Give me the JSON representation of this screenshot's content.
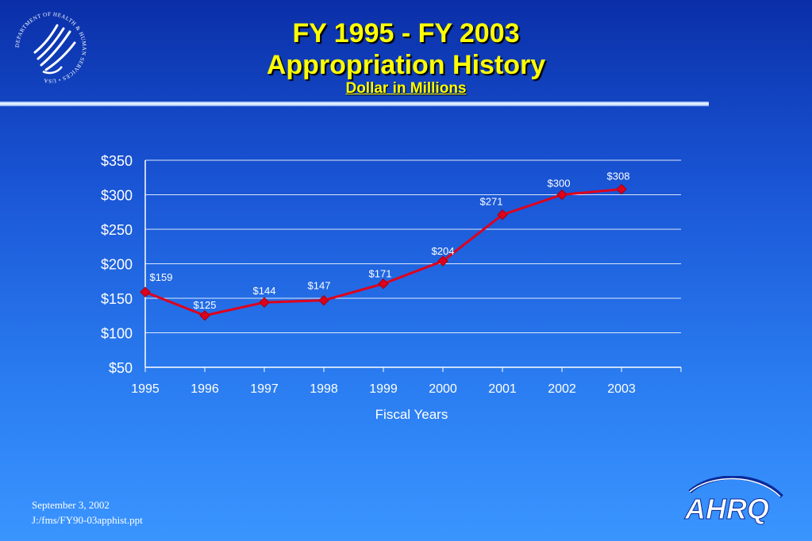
{
  "slide": {
    "title_line1": "FY 1995 - FY 2003",
    "title_line2": "Appropriation History",
    "subtitle": "Dollar in Millions"
  },
  "logos": {
    "hhs_ring_text": "DEPARTMENT OF HEALTH & HUMAN SERVICES • USA",
    "ahrq": "AHRQ"
  },
  "footer": {
    "date": "September 3, 2002",
    "path": "J:/fms/FY90-03apphist.ppt"
  },
  "colors": {
    "title": "#ffff00",
    "series_line": "#e0001b",
    "text": "#ffffff"
  },
  "chart_data": {
    "type": "line",
    "title": "",
    "xlabel": "Fiscal Years",
    "ylabel": "",
    "categories": [
      "1995",
      "1996",
      "1997",
      "1998",
      "1999",
      "2000",
      "2001",
      "2002",
      "2003"
    ],
    "series": [
      {
        "values": [
          159,
          125,
          144,
          147,
          171,
          204,
          271,
          300,
          308
        ]
      }
    ],
    "data_labels": [
      "$159",
      "$125",
      "$144",
      "$147",
      "$171",
      "$204",
      "$271",
      "$300",
      "$308"
    ],
    "ylim": [
      50,
      350
    ],
    "yticks": [
      50,
      100,
      150,
      200,
      250,
      300,
      350
    ],
    "ytick_labels": [
      "$50",
      "$100",
      "$150",
      "$200",
      "$250",
      "$300",
      "$350"
    ],
    "grid": true,
    "legend": "none",
    "marker": "diamond"
  }
}
